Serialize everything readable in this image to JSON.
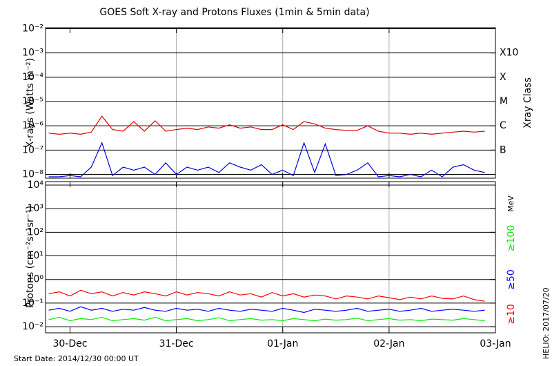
{
  "chart_data": [
    {
      "type": "line",
      "title": "GOES Soft X-ray and Protons Fluxes   (1min & 5min data)",
      "ylabel": "X-rays (Watts m⁻²)",
      "y2label": "Xray Class",
      "log_y": true,
      "grid": true,
      "xlim": [
        -0.23,
        4
      ],
      "ylim": [
        7e-09,
        0.011
      ],
      "yticks": [
        {
          "value": 1e-08,
          "label": "10⁻⁸"
        },
        {
          "value": 1e-07,
          "label": "10⁻⁷"
        },
        {
          "value": 1e-06,
          "label": "10⁻⁶"
        },
        {
          "value": 1e-05,
          "label": "10⁻⁵"
        },
        {
          "value": 0.0001,
          "label": "10⁻⁴"
        },
        {
          "value": 0.001,
          "label": "10⁻³"
        },
        {
          "value": 0.01,
          "label": "10⁻²"
        }
      ],
      "class_labels": [
        {
          "value": 0.001,
          "label": "X10"
        },
        {
          "value": 0.0001,
          "label": "X"
        },
        {
          "value": 1e-05,
          "label": "M"
        },
        {
          "value": 1e-06,
          "label": "C"
        },
        {
          "value": 1e-07,
          "label": "B"
        }
      ],
      "x": [
        -0.2,
        -0.1,
        0,
        0.1,
        0.2,
        0.3,
        0.4,
        0.5,
        0.6,
        0.7,
        0.8,
        0.9,
        1,
        1.1,
        1.2,
        1.3,
        1.4,
        1.5,
        1.6,
        1.7,
        1.8,
        1.9,
        2,
        2.1,
        2.2,
        2.3,
        2.4,
        2.5,
        2.6,
        2.7,
        2.8,
        2.9,
        3,
        3.1,
        3.2,
        3.3,
        3.4,
        3.5,
        3.6,
        3.7,
        3.8,
        3.9
      ],
      "series": [
        {
          "color": "#e00000",
          "values": [
            5e-07,
            4.5e-07,
            5e-07,
            4.5e-07,
            5.5e-07,
            2.5e-06,
            7e-07,
            6e-07,
            1.5e-06,
            6e-07,
            1.6e-06,
            6e-07,
            7e-07,
            8e-07,
            7e-07,
            9e-07,
            8e-07,
            1.1e-06,
            8e-07,
            9e-07,
            7e-07,
            7e-07,
            1.1e-06,
            7e-07,
            1.5e-06,
            1.2e-06,
            8e-07,
            7e-07,
            6.5e-07,
            6.5e-07,
            1e-06,
            6e-07,
            5e-07,
            5e-07,
            4.5e-07,
            5e-07,
            4.5e-07,
            5e-07,
            5.5e-07,
            6e-07,
            5.5e-07,
            6e-07
          ]
        },
        {
          "color": "#0000e0",
          "values": [
            8e-09,
            8e-09,
            9e-09,
            8e-09,
            2e-08,
            2e-07,
            9e-09,
            2e-08,
            1.5e-08,
            2e-08,
            1e-08,
            3e-08,
            1e-08,
            2e-08,
            1.5e-08,
            2e-08,
            1.2e-08,
            3e-08,
            2e-08,
            1.5e-08,
            2.5e-08,
            1e-08,
            1.5e-08,
            9e-09,
            2e-07,
            1.2e-08,
            1.8e-07,
            9e-09,
            1e-08,
            1.5e-08,
            3e-08,
            8e-09,
            9e-09,
            8e-09,
            1e-08,
            8e-09,
            1.5e-08,
            8e-09,
            2e-08,
            2.5e-08,
            1.5e-08,
            1.2e-08
          ]
        }
      ]
    },
    {
      "type": "line",
      "ylabel": "Protons (cm⁻²s⁻¹sr⁻¹)",
      "unit_label": "MeV",
      "log_y": true,
      "grid": true,
      "threshold_line": 10,
      "xlim": [
        -0.23,
        4
      ],
      "xticks": [
        {
          "value": 0,
          "label": "30-Dec"
        },
        {
          "value": 1,
          "label": "31-Dec"
        },
        {
          "value": 2,
          "label": "01-Jan"
        },
        {
          "value": 3,
          "label": "02-Jan"
        },
        {
          "value": 4,
          "label": "03-Jan"
        }
      ],
      "ylim": [
        0.0055,
        14000
      ],
      "yticks": [
        {
          "value": 0.01,
          "label": "10⁻²"
        },
        {
          "value": 0.1,
          "label": "10⁻¹"
        },
        {
          "value": 1,
          "label": "10⁰"
        },
        {
          "value": 10,
          "label": "10¹"
        },
        {
          "value": 100,
          "label": "10²"
        },
        {
          "value": 1000,
          "label": "10³"
        },
        {
          "value": 10000,
          "label": "10⁴"
        }
      ],
      "x": [
        -0.2,
        -0.1,
        0,
        0.1,
        0.2,
        0.3,
        0.4,
        0.5,
        0.6,
        0.7,
        0.8,
        0.9,
        1,
        1.1,
        1.2,
        1.3,
        1.4,
        1.5,
        1.6,
        1.7,
        1.8,
        1.9,
        2,
        2.1,
        2.2,
        2.3,
        2.4,
        2.5,
        2.6,
        2.7,
        2.8,
        2.9,
        3,
        3.1,
        3.2,
        3.3,
        3.4,
        3.5,
        3.6,
        3.7,
        3.8,
        3.9
      ],
      "series": [
        {
          "name": "≥10",
          "color": "#ff0000",
          "values": [
            0.25,
            0.3,
            0.2,
            0.35,
            0.25,
            0.3,
            0.2,
            0.28,
            0.22,
            0.3,
            0.25,
            0.2,
            0.3,
            0.22,
            0.28,
            0.25,
            0.2,
            0.3,
            0.22,
            0.25,
            0.18,
            0.28,
            0.2,
            0.25,
            0.18,
            0.22,
            0.2,
            0.15,
            0.2,
            0.18,
            0.15,
            0.2,
            0.17,
            0.14,
            0.18,
            0.15,
            0.2,
            0.16,
            0.15,
            0.2,
            0.14,
            0.12
          ]
        },
        {
          "name": "≥50",
          "color": "#0000ff",
          "values": [
            0.05,
            0.06,
            0.045,
            0.07,
            0.05,
            0.06,
            0.045,
            0.055,
            0.05,
            0.065,
            0.05,
            0.045,
            0.06,
            0.05,
            0.055,
            0.045,
            0.06,
            0.05,
            0.045,
            0.055,
            0.05,
            0.045,
            0.06,
            0.05,
            0.04,
            0.055,
            0.05,
            0.045,
            0.05,
            0.06,
            0.045,
            0.05,
            0.055,
            0.045,
            0.05,
            0.06,
            0.045,
            0.05,
            0.055,
            0.05,
            0.045,
            0.05
          ]
        },
        {
          "name": "≥100",
          "color": "#00ee00",
          "values": [
            0.02,
            0.025,
            0.018,
            0.022,
            0.02,
            0.025,
            0.018,
            0.02,
            0.022,
            0.019,
            0.025,
            0.018,
            0.02,
            0.022,
            0.018,
            0.02,
            0.024,
            0.018,
            0.02,
            0.022,
            0.019,
            0.02,
            0.018,
            0.022,
            0.02,
            0.018,
            0.021,
            0.019,
            0.02,
            0.023,
            0.018,
            0.02,
            0.022,
            0.019,
            0.02,
            0.018,
            0.021,
            0.02,
            0.019,
            0.022,
            0.02,
            0.018
          ]
        }
      ]
    }
  ],
  "footer": {
    "start_date": "Start Date: 2014/12/30 00:00 UT",
    "credit": "HELIO: 2017/07/20"
  }
}
